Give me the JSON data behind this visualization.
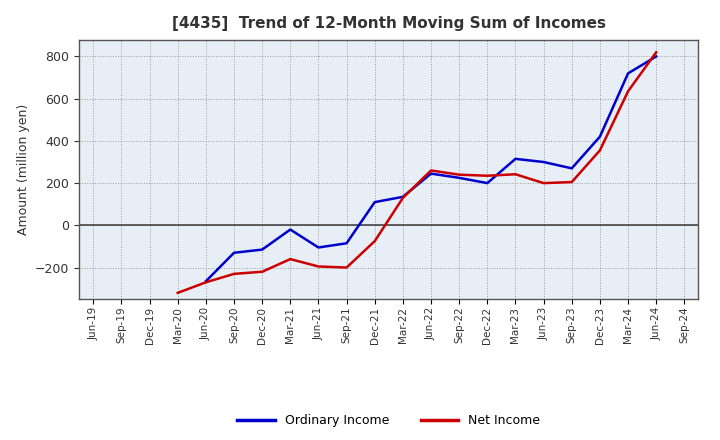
{
  "title": "[4435]  Trend of 12-Month Moving Sum of Incomes",
  "ylabel": "Amount (million yen)",
  "background_color": "#ffffff",
  "plot_bg_color": "#e8eef5",
  "grid_color": "#999999",
  "ordinary_income_color": "#0000cc",
  "net_income_color": "#cc0000",
  "legend_labels": [
    "Ordinary Income",
    "Net Income"
  ],
  "x_labels": [
    "Jun-19",
    "Sep-19",
    "Dec-19",
    "Mar-20",
    "Jun-20",
    "Sep-20",
    "Dec-20",
    "Mar-21",
    "Jun-21",
    "Sep-21",
    "Dec-21",
    "Mar-22",
    "Jun-22",
    "Sep-22",
    "Dec-22",
    "Mar-23",
    "Jun-23",
    "Sep-23",
    "Dec-23",
    "Mar-24",
    "Jun-24",
    "Sep-24"
  ],
  "ordinary_income": [
    null,
    null,
    null,
    null,
    -265,
    -130,
    -115,
    -20,
    -105,
    -85,
    110,
    135,
    245,
    225,
    200,
    315,
    300,
    270,
    420,
    720,
    800,
    null
  ],
  "net_income": [
    null,
    null,
    null,
    -320,
    -270,
    -230,
    -220,
    -160,
    -195,
    -200,
    -75,
    130,
    260,
    240,
    235,
    242,
    200,
    205,
    355,
    635,
    820,
    null
  ],
  "ylim": [
    -350,
    880
  ],
  "yticks": [
    -200,
    0,
    200,
    400,
    600,
    800
  ],
  "title_color": "#333333",
  "tick_color": "#333333",
  "spine_color": "#555555"
}
